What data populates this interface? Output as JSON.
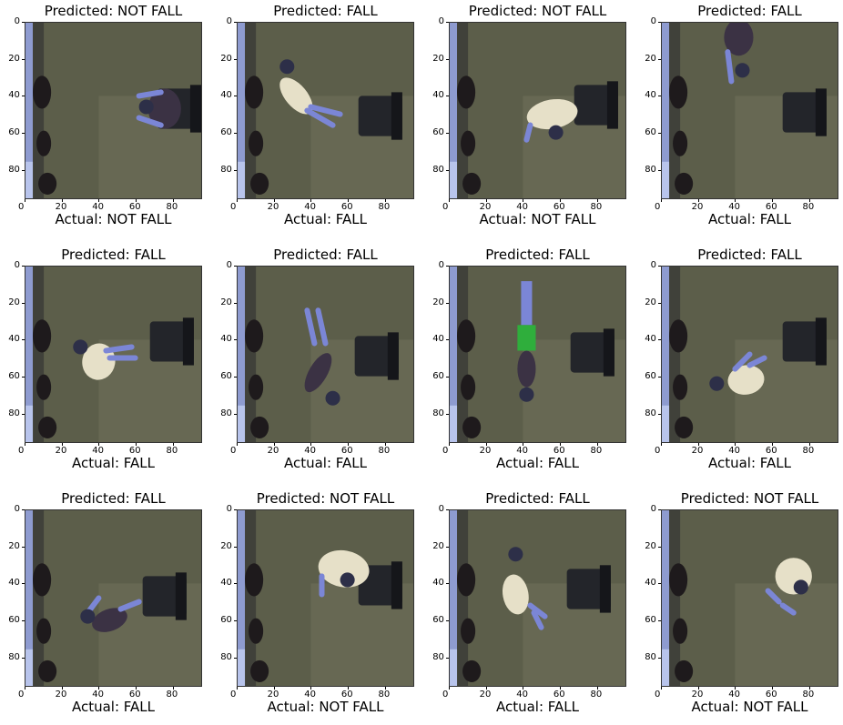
{
  "panels": [
    {
      "predicted": "Predicted: NOT FALL",
      "actual": "Actual: NOT FALL",
      "scene": "sitting-right"
    },
    {
      "predicted": "Predicted: FALL",
      "actual": "Actual: FALL",
      "scene": "lying-diagonal-light"
    },
    {
      "predicted": "Predicted: NOT FALL",
      "actual": "Actual: NOT FALL",
      "scene": "bending-center"
    },
    {
      "predicted": "Predicted: FALL",
      "actual": "Actual: FALL",
      "scene": "top-edge-figure"
    },
    {
      "predicted": "Predicted: FALL",
      "actual": "Actual: FALL",
      "scene": "lying-left-light"
    },
    {
      "predicted": "Predicted: FALL",
      "actual": "Actual: FALL",
      "scene": "lying-diagonal-dark"
    },
    {
      "predicted": "Predicted: FALL",
      "actual": "Actual: FALL",
      "scene": "lying-vertical-green"
    },
    {
      "predicted": "Predicted: FALL",
      "actual": "Actual: FALL",
      "scene": "lying-curled-light"
    },
    {
      "predicted": "Predicted: FALL",
      "actual": "Actual: FALL",
      "scene": "lying-dark-left"
    },
    {
      "predicted": "Predicted: NOT FALL",
      "actual": "Actual: NOT FALL",
      "scene": "bending-chair"
    },
    {
      "predicted": "Predicted: FALL",
      "actual": "Actual: FALL",
      "scene": "lying-center-light"
    },
    {
      "predicted": "Predicted: NOT FALL",
      "actual": "Actual: NOT FALL",
      "scene": "sitting-far-right"
    }
  ],
  "axis": {
    "x_ticks": [
      "0",
      "20",
      "40",
      "60",
      "80"
    ],
    "y_ticks": [
      "0",
      "20",
      "40",
      "60",
      "80"
    ],
    "range": [
      0,
      96
    ]
  },
  "colors": {
    "floor": "#5c5e4a",
    "floor_light": "#7a7a64",
    "wall": "#8e9bd0",
    "chair": "#23252a",
    "person_light": "#e6e0c8",
    "person_dark": "#3b3244",
    "limb": "#7b86d6"
  }
}
